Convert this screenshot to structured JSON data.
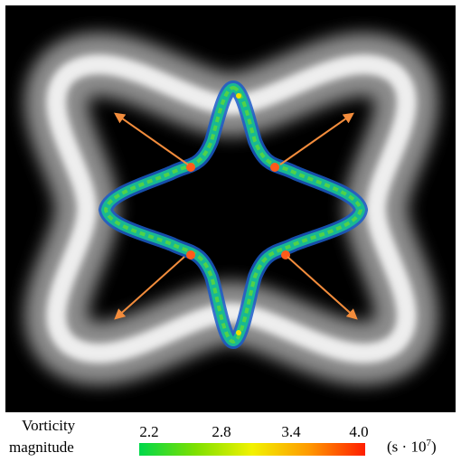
{
  "colorbar": {
    "title_line1": "Vorticity",
    "title_line2": "magnitude",
    "ticks": [
      "2.2",
      "2.8",
      "3.4",
      "4.0"
    ],
    "unit_base": "(s · 10",
    "unit_exp": "7",
    "unit_close": ")",
    "colors": [
      "#00d84a",
      "#7ee000",
      "#f2f200",
      "#ff9a00",
      "#ff1e00"
    ]
  },
  "figure": {
    "background_color": "#000000",
    "arrow_color": "#f28c3c",
    "ring_color": "#ffffff"
  }
}
